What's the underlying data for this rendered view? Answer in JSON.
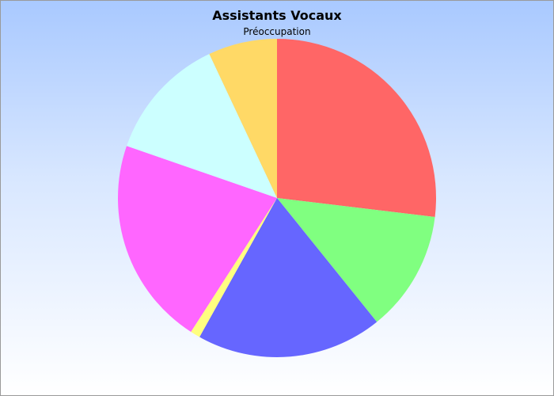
{
  "chart_data": {
    "type": "pie",
    "title": "Assistants Vocaux",
    "subtitle": "Préoccupation",
    "slices": [
      {
        "value": 26.9,
        "color": "#ff6666"
      },
      {
        "value": 12.3,
        "color": "#80ff80"
      },
      {
        "value": 18.9,
        "color": "#6666ff"
      },
      {
        "value": 1.0,
        "color": "#ffff80"
      },
      {
        "value": 21.2,
        "color": "#ff66ff"
      },
      {
        "value": 12.7,
        "color": "#ccffff"
      },
      {
        "value": 7.0,
        "color": "#ffd966"
      }
    ]
  }
}
